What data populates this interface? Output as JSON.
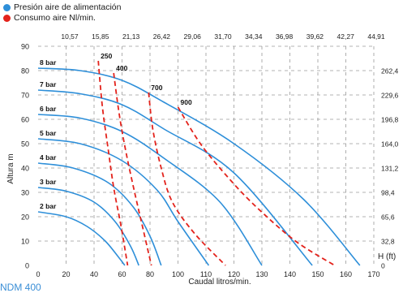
{
  "legend": [
    {
      "label": "Presión aire de alimentación",
      "color": "#2e8fd9"
    },
    {
      "label": "Consumo aire Nl/min.",
      "color": "#e3221b"
    }
  ],
  "footer": "NDM 400",
  "chart_data": {
    "type": "line",
    "xlabel": "Caudal litros/min.",
    "ylabel": "Altura m",
    "y2label": "H (ft)",
    "xlim": [
      0,
      170
    ],
    "ylim": [
      0,
      90
    ],
    "x_ticks": [
      "0",
      "20",
      "40",
      "60",
      "80",
      "100",
      "110",
      "120",
      "130",
      "140",
      "150",
      "160",
      "170"
    ],
    "x_tick_values": [
      0,
      20,
      40,
      60,
      80,
      100,
      110,
      120,
      130,
      140,
      150,
      160,
      170
    ],
    "y_ticks": [
      "0",
      "10",
      "20",
      "30",
      "40",
      "50",
      "60",
      "70",
      "80",
      "90"
    ],
    "y_tick_values": [
      0,
      10,
      20,
      30,
      40,
      50,
      60,
      70,
      80,
      90
    ],
    "top_axis_ticks": [
      "10,57",
      "15,85",
      "21,13",
      "26,42",
      "29,06",
      "31,70",
      "34,34",
      "36,98",
      "39,62",
      "42,27",
      "44,91"
    ],
    "right_axis_ticks": [
      {
        "label": "262,4",
        "y": 80
      },
      {
        "label": "229,6",
        "y": 70
      },
      {
        "label": "196,8",
        "y": 60
      },
      {
        "label": "164,0",
        "y": 50
      },
      {
        "label": "131,2",
        "y": 40
      },
      {
        "label": "98,4",
        "y": 30
      },
      {
        "label": "65,6",
        "y": 20
      },
      {
        "label": "32,8",
        "y": 10
      },
      {
        "label": "0",
        "y": 0
      }
    ],
    "grid": true,
    "pressure_series": [
      {
        "name": "2 bar",
        "color": "#2e8fd9",
        "points": [
          [
            0,
            22
          ],
          [
            20,
            20
          ],
          [
            35,
            16
          ],
          [
            48,
            10
          ],
          [
            58,
            3
          ],
          [
            62,
            0
          ]
        ]
      },
      {
        "name": "3 bar",
        "color": "#2e8fd9",
        "points": [
          [
            0,
            32
          ],
          [
            20,
            30.5
          ],
          [
            40,
            26
          ],
          [
            55,
            18
          ],
          [
            66,
            8
          ],
          [
            72,
            0
          ]
        ]
      },
      {
        "name": "4 bar",
        "color": "#2e8fd9",
        "points": [
          [
            0,
            42
          ],
          [
            25,
            40
          ],
          [
            50,
            34
          ],
          [
            68,
            24
          ],
          [
            80,
            12
          ],
          [
            88,
            0
          ]
        ]
      },
      {
        "name": "5 bar",
        "color": "#2e8fd9",
        "points": [
          [
            0,
            52
          ],
          [
            30,
            50
          ],
          [
            60,
            43
          ],
          [
            85,
            31
          ],
          [
            100,
            18
          ],
          [
            111,
            0
          ]
        ]
      },
      {
        "name": "6 bar",
        "color": "#2e8fd9",
        "points": [
          [
            0,
            62
          ],
          [
            30,
            60.5
          ],
          [
            60,
            55
          ],
          [
            90,
            44
          ],
          [
            115,
            26
          ],
          [
            130,
            0
          ]
        ]
      },
      {
        "name": "7 bar",
        "color": "#2e8fd9",
        "points": [
          [
            0,
            72
          ],
          [
            30,
            70.5
          ],
          [
            60,
            66
          ],
          [
            90,
            56
          ],
          [
            120,
            38
          ],
          [
            148,
            0
          ]
        ]
      },
      {
        "name": "8 bar",
        "color": "#2e8fd9",
        "points": [
          [
            0,
            81
          ],
          [
            30,
            80
          ],
          [
            60,
            76
          ],
          [
            90,
            67
          ],
          [
            120,
            50
          ],
          [
            145,
            27
          ],
          [
            165,
            0
          ]
        ]
      }
    ],
    "consumption_series": [
      {
        "name": "250",
        "color": "#e3221b",
        "points": [
          [
            43,
            84
          ],
          [
            46,
            65
          ],
          [
            50,
            48
          ],
          [
            54,
            32
          ],
          [
            59,
            17
          ],
          [
            64,
            0
          ]
        ]
      },
      {
        "name": "400",
        "color": "#e3221b",
        "points": [
          [
            54,
            79
          ],
          [
            58,
            62
          ],
          [
            63,
            46
          ],
          [
            69,
            30
          ],
          [
            75,
            15
          ],
          [
            81,
            0
          ]
        ]
      },
      {
        "name": "700",
        "color": "#e3221b",
        "points": [
          [
            79,
            71
          ],
          [
            82,
            56
          ],
          [
            88,
            40
          ],
          [
            96,
            26
          ],
          [
            106,
            13
          ],
          [
            117,
            0
          ]
        ]
      },
      {
        "name": "900",
        "color": "#e3221b",
        "points": [
          [
            100,
            65
          ],
          [
            108,
            50
          ],
          [
            118,
            36
          ],
          [
            128,
            24
          ],
          [
            142,
            10
          ],
          [
            156,
            0
          ]
        ]
      }
    ]
  }
}
